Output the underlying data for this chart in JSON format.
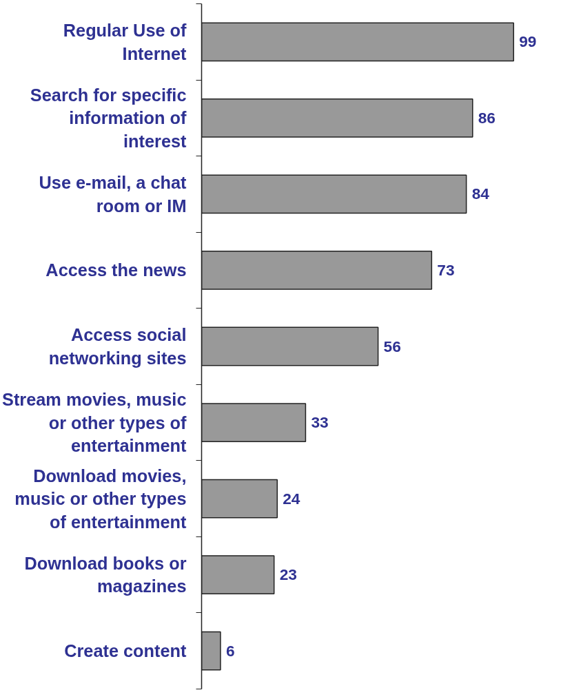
{
  "chart_data": {
    "type": "bar",
    "orientation": "horizontal",
    "categories": [
      "Regular Use of Internet",
      "Search for specific information of interest",
      "Use e-mail, a chat room or IM",
      "Access the news",
      "Access social networking sites",
      "Stream movies, music or other types of entertainment",
      "Download movies, music or other types of entertainment",
      "Download books or magazines",
      "Create content"
    ],
    "values": [
      99,
      86,
      84,
      73,
      56,
      33,
      24,
      23,
      6
    ],
    "color": "#999999",
    "data_labels": true
  }
}
